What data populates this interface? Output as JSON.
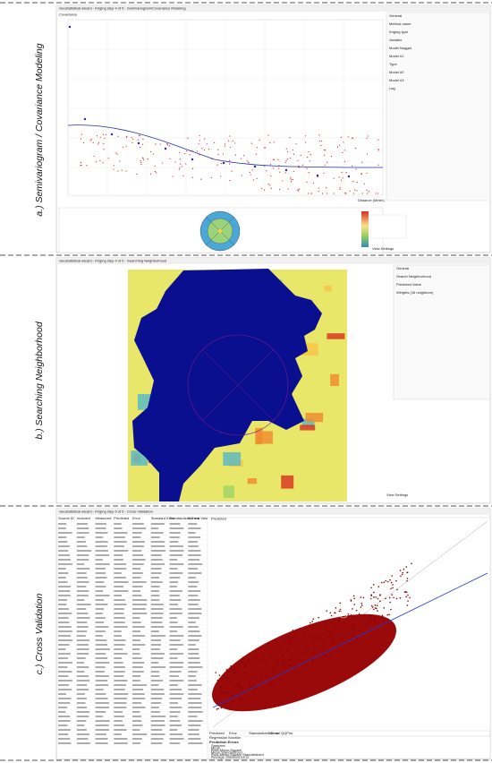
{
  "figure_labels": [
    "a.)  Semivariogram / Covariance Modeling",
    "b.)  Searching Neighborhood",
    "c.)  Cross Validation"
  ],
  "panels": [
    {
      "window_title": "Geostatistical wizard - Kriging step 4 of 5 - Semivariogram/Covariance Modeling",
      "plot_title": "Covariance",
      "x_axis_label": "Distance (Meter)",
      "properties": [
        "General",
        "Method name",
        "Kriging type",
        "Variable",
        "Model Nugget",
        "Model #1",
        "Type",
        "Model #2",
        "Model #3",
        "Lag"
      ],
      "button": "View Settings"
    },
    {
      "window_title": "Geostatistical wizard - Kriging step 4 of 5 - Searching Neighborhood",
      "properties": [
        "General",
        "Search Neighborhood",
        "Predicted Value",
        "Weights (16 neighbors)"
      ],
      "button": "View Settings"
    },
    {
      "window_title": "Geostatistical wizard - Kriging step 5 of 5 - Cross Validation",
      "table_headers": [
        "Source ID",
        "Included",
        "Measured",
        "Predicted",
        "Error",
        "Standard Error",
        "Standardized Error",
        "Normal Value"
      ],
      "plot_title": "Predicted",
      "tabs": [
        "Predicted",
        "Error",
        "Standardized Error",
        "Normal QQPlot"
      ],
      "regression_label": "Regression function",
      "stats_title": "Prediction Errors",
      "stats": [
        "Samples",
        "Mean",
        "Root-Mean-Square",
        "Mean Standardized",
        "Root-Mean-Square Standardized",
        "Average Standard Error"
      ]
    }
  ]
}
